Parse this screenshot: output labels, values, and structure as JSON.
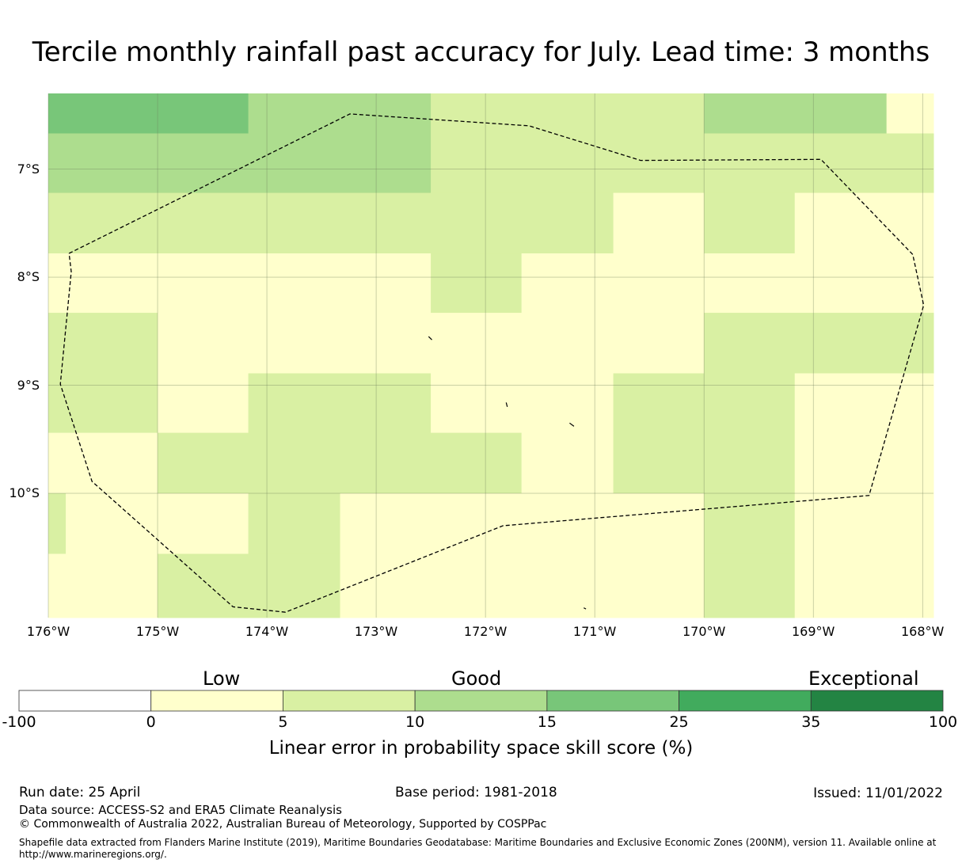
{
  "title": "Tercile monthly rainfall past accuracy for July. Lead time: 3 months",
  "map": {
    "lon_range": [
      -176.0,
      -167.9
    ],
    "lat_range": [
      -11.15,
      -6.3
    ],
    "lat_ticks": [
      {
        "value": -7,
        "label": "7°S"
      },
      {
        "value": -8,
        "label": "8°S"
      },
      {
        "value": -9,
        "label": "9°S"
      },
      {
        "value": -10,
        "label": "10°S"
      }
    ],
    "lon_ticks": [
      {
        "value": -176,
        "label": "176°W"
      },
      {
        "value": -175,
        "label": "175°W"
      },
      {
        "value": -174,
        "label": "174°W"
      },
      {
        "value": -173,
        "label": "173°W"
      },
      {
        "value": -172,
        "label": "172°W"
      },
      {
        "value": -171,
        "label": "171°W"
      },
      {
        "value": -170,
        "label": "170°W"
      },
      {
        "value": -169,
        "label": "169°W"
      },
      {
        "value": -168,
        "label": "168°W"
      }
    ],
    "cells": [
      {
        "lon": [
          -176.0,
          -174.17
        ],
        "lat": [
          -6.3,
          -6.67
        ],
        "cls": 3
      },
      {
        "lon": [
          -174.17,
          -172.5
        ],
        "lat": [
          -6.3,
          -6.67
        ],
        "cls": 2
      },
      {
        "lon": [
          -172.5,
          -170.0
        ],
        "lat": [
          -6.3,
          -6.67
        ],
        "cls": 1
      },
      {
        "lon": [
          -170.0,
          -168.33
        ],
        "lat": [
          -6.3,
          -6.67
        ],
        "cls": 2
      },
      {
        "lon": [
          -168.33,
          -167.9
        ],
        "lat": [
          -6.3,
          -6.67
        ],
        "cls": 0
      },
      {
        "lon": [
          -176.0,
          -172.5
        ],
        "lat": [
          -6.67,
          -7.22
        ],
        "cls": 2
      },
      {
        "lon": [
          -172.5,
          -167.9
        ],
        "lat": [
          -6.67,
          -7.22
        ],
        "cls": 1
      },
      {
        "lon": [
          -176.0,
          -170.83
        ],
        "lat": [
          -7.22,
          -7.78
        ],
        "cls": 1
      },
      {
        "lon": [
          -170.83,
          -170.0
        ],
        "lat": [
          -7.22,
          -7.78
        ],
        "cls": 0
      },
      {
        "lon": [
          -170.0,
          -169.17
        ],
        "lat": [
          -7.22,
          -7.78
        ],
        "cls": 1
      },
      {
        "lon": [
          -169.17,
          -167.9
        ],
        "lat": [
          -7.22,
          -7.78
        ],
        "cls": 0
      },
      {
        "lon": [
          -176.0,
          -172.5
        ],
        "lat": [
          -7.78,
          -8.33
        ],
        "cls": 0
      },
      {
        "lon": [
          -172.5,
          -171.67
        ],
        "lat": [
          -7.78,
          -8.33
        ],
        "cls": 1
      },
      {
        "lon": [
          -171.67,
          -167.9
        ],
        "lat": [
          -7.78,
          -8.33
        ],
        "cls": 0
      },
      {
        "lon": [
          -176.0,
          -175.0
        ],
        "lat": [
          -8.33,
          -8.89
        ],
        "cls": 1
      },
      {
        "lon": [
          -175.0,
          -170.0
        ],
        "lat": [
          -8.33,
          -8.89
        ],
        "cls": 0
      },
      {
        "lon": [
          -170.0,
          -167.9
        ],
        "lat": [
          -8.33,
          -8.89
        ],
        "cls": 1
      },
      {
        "lon": [
          -176.0,
          -175.0
        ],
        "lat": [
          -8.89,
          -9.44
        ],
        "cls": 1
      },
      {
        "lon": [
          -175.0,
          -174.17
        ],
        "lat": [
          -8.89,
          -9.44
        ],
        "cls": 0
      },
      {
        "lon": [
          -174.17,
          -172.5
        ],
        "lat": [
          -8.89,
          -9.44
        ],
        "cls": 1
      },
      {
        "lon": [
          -172.5,
          -170.83
        ],
        "lat": [
          -8.89,
          -9.44
        ],
        "cls": 0
      },
      {
        "lon": [
          -170.83,
          -169.17
        ],
        "lat": [
          -8.89,
          -9.44
        ],
        "cls": 1
      },
      {
        "lon": [
          -169.17,
          -167.9
        ],
        "lat": [
          -8.89,
          -9.44
        ],
        "cls": 0
      },
      {
        "lon": [
          -176.0,
          -175.0
        ],
        "lat": [
          -9.44,
          -10.0
        ],
        "cls": 0
      },
      {
        "lon": [
          -175.0,
          -171.67
        ],
        "lat": [
          -9.44,
          -10.0
        ],
        "cls": 1
      },
      {
        "lon": [
          -171.67,
          -170.83
        ],
        "lat": [
          -9.44,
          -10.0
        ],
        "cls": 0
      },
      {
        "lon": [
          -170.83,
          -169.17
        ],
        "lat": [
          -9.44,
          -10.0
        ],
        "cls": 1
      },
      {
        "lon": [
          -169.17,
          -167.9
        ],
        "lat": [
          -9.44,
          -10.0
        ],
        "cls": 0
      },
      {
        "lon": [
          -176.0,
          -175.84
        ],
        "lat": [
          -10.0,
          -10.56
        ],
        "cls": 1
      },
      {
        "lon": [
          -175.84,
          -174.17
        ],
        "lat": [
          -10.0,
          -10.56
        ],
        "cls": 0
      },
      {
        "lon": [
          -174.17,
          -173.33
        ],
        "lat": [
          -10.0,
          -10.56
        ],
        "cls": 1
      },
      {
        "lon": [
          -173.33,
          -170.0
        ],
        "lat": [
          -10.0,
          -10.56
        ],
        "cls": 0
      },
      {
        "lon": [
          -170.0,
          -169.17
        ],
        "lat": [
          -10.0,
          -10.56
        ],
        "cls": 1
      },
      {
        "lon": [
          -169.17,
          -167.9
        ],
        "lat": [
          -10.0,
          -10.56
        ],
        "cls": 0
      },
      {
        "lon": [
          -176.0,
          -175.0
        ],
        "lat": [
          -10.56,
          -11.15
        ],
        "cls": 0
      },
      {
        "lon": [
          -175.0,
          -173.33
        ],
        "lat": [
          -10.56,
          -11.15
        ],
        "cls": 1
      },
      {
        "lon": [
          -173.33,
          -170.0
        ],
        "lat": [
          -10.56,
          -11.15
        ],
        "cls": 0
      },
      {
        "lon": [
          -170.0,
          -169.17
        ],
        "lat": [
          -10.56,
          -11.15
        ],
        "cls": 1
      },
      {
        "lon": [
          -169.17,
          -167.9
        ],
        "lat": [
          -10.56,
          -11.15
        ],
        "cls": 0
      }
    ],
    "eez_boundary": [
      [
        -175.81,
        -7.78
      ],
      [
        -173.24,
        -6.49
      ],
      [
        -171.6,
        -6.6
      ],
      [
        -170.58,
        -6.92
      ],
      [
        -168.93,
        -6.91
      ],
      [
        -168.09,
        -7.79
      ],
      [
        -167.99,
        -8.26
      ],
      [
        -168.49,
        -10.02
      ],
      [
        -171.84,
        -10.3
      ],
      [
        -173.83,
        -11.1
      ],
      [
        -174.31,
        -11.05
      ],
      [
        -175.6,
        -9.89
      ],
      [
        -175.89,
        -8.99
      ],
      [
        -175.79,
        -7.95
      ],
      [
        -175.81,
        -7.78
      ]
    ],
    "islands": [
      [
        [
          -172.52,
          -8.55
        ],
        [
          -172.49,
          -8.58
        ]
      ],
      [
        [
          -171.81,
          -9.16
        ],
        [
          -171.8,
          -9.2
        ]
      ],
      [
        [
          -171.23,
          -9.35
        ],
        [
          -171.19,
          -9.38
        ]
      ],
      [
        [
          -171.1,
          -11.06
        ],
        [
          -171.08,
          -11.07
        ]
      ]
    ]
  },
  "legend": {
    "categories": [
      "Low",
      "Good",
      "Exceptional"
    ],
    "bins": [
      {
        "from": -100,
        "to": 0,
        "color": "#ffffff"
      },
      {
        "from": 0,
        "to": 5,
        "color": "#ffffcc"
      },
      {
        "from": 5,
        "to": 10,
        "color": "#d9f0a3"
      },
      {
        "from": 10,
        "to": 15,
        "color": "#addd8e"
      },
      {
        "from": 15,
        "to": 25,
        "color": "#78c679"
      },
      {
        "from": 25,
        "to": 35,
        "color": "#41ab5d"
      },
      {
        "from": 35,
        "to": 100,
        "color": "#238443"
      }
    ],
    "ticks": [
      "-100",
      "0",
      "5",
      "10",
      "15",
      "25",
      "35",
      "100"
    ],
    "title": "Linear error in probability space skill score (%)"
  },
  "cell_colors": [
    "#ffffcc",
    "#d9f0a3",
    "#addd8e",
    "#78c679"
  ],
  "footer": {
    "run_date": "Run date: 25 April",
    "base_period": "Base period: 1981-2018",
    "issued": "Issued: 11/01/2022",
    "data_source": "Data source: ACCESS-S2 and ERA5 Climate Reanalysis",
    "copyright": "© Commonwealth of Australia 2022, Australian Bureau of Meteorology, Supported by COSPPac",
    "shapefile_line1": "Shapefile data extracted from Flanders Marine Institute (2019), Maritime Boundaries Geodatabase: Maritime Boundaries and Exclusive Economic Zones (200NM), version 11. Available online at",
    "shapefile_line2": "http://www.marineregions.org/."
  }
}
